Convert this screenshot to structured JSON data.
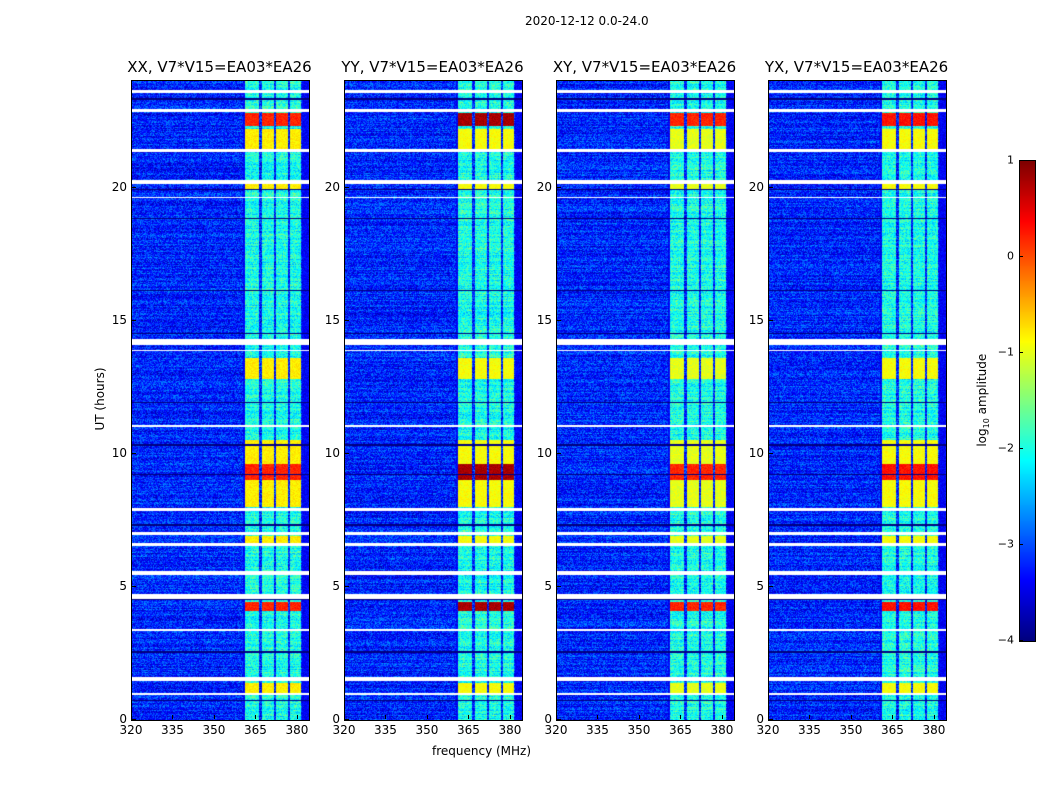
{
  "figure_title": "2020-12-12 0.0-24.0",
  "chart_data": {
    "type": "heatmap",
    "xlabel": "frequency (MHz)",
    "ylabel": "UT (hours)",
    "xlim": [
      320,
      384
    ],
    "ylim": [
      0,
      24
    ],
    "xticks": [
      "320",
      "335",
      "350",
      "365",
      "380"
    ],
    "xtick_values": [
      320,
      335,
      350,
      365,
      380
    ],
    "yticks": [
      "0",
      "5",
      "10",
      "15",
      "20"
    ],
    "ytick_values": [
      0,
      5,
      10,
      15,
      20
    ],
    "panels": [
      {
        "title": "XX, V7*V15=EA03*EA26",
        "hot_levels": [
          0.2,
          -0.8
        ]
      },
      {
        "title": "YY, V7*V15=EA03*EA26",
        "hot_levels": [
          0.8,
          -0.9
        ]
      },
      {
        "title": "XY, V7*V15=EA03*EA26",
        "hot_levels": [
          0.2,
          -1.0
        ]
      },
      {
        "title": "YX, V7*V15=EA03*EA26",
        "hot_levels": [
          0.3,
          -0.9
        ]
      }
    ],
    "colorbar": {
      "label": "log10 amplitude",
      "label_main": "log",
      "label_sub": "10",
      "label_rest": " amplitude",
      "range": [
        -4,
        1
      ],
      "ticks": [
        "1",
        "0",
        "−1",
        "−2",
        "−3",
        "−4"
      ],
      "tick_values": [
        1,
        0,
        -1,
        -2,
        -3,
        -4
      ],
      "colormap": "jet"
    },
    "background_level": -3.2,
    "subbands_mhz": [
      [
        361,
        366
      ],
      [
        367,
        371.5
      ],
      [
        372,
        376.5
      ],
      [
        377,
        381
      ]
    ],
    "subband_level": -2.0,
    "flagged_hours": [
      [
        23.55,
        23.65
      ],
      [
        22.85,
        22.95
      ],
      [
        21.35,
        21.45
      ],
      [
        20.15,
        20.3
      ],
      [
        19.6,
        19.65
      ],
      [
        14.1,
        14.3
      ],
      [
        13.85,
        13.9
      ],
      [
        11.0,
        11.08
      ],
      [
        7.85,
        7.95
      ],
      [
        6.95,
        7.05
      ],
      [
        6.55,
        6.65
      ],
      [
        5.45,
        5.6
      ],
      [
        4.55,
        4.75
      ],
      [
        3.35,
        3.42
      ],
      [
        1.45,
        1.6
      ],
      [
        0.95,
        1.0
      ]
    ],
    "dark_hours": [
      [
        23.3,
        23.35
      ],
      [
        19.9,
        19.95
      ],
      [
        18.8,
        18.85
      ],
      [
        16.1,
        16.15
      ],
      [
        14.5,
        14.55
      ],
      [
        11.9,
        11.95
      ],
      [
        10.3,
        10.35
      ],
      [
        9.2,
        9.25
      ],
      [
        7.3,
        7.35
      ],
      [
        4.5,
        4.55
      ],
      [
        2.5,
        2.6
      ],
      [
        0.7,
        0.75
      ]
    ],
    "bright_hours": [
      {
        "range": [
          22.3,
          22.8
        ],
        "hot": true
      },
      {
        "range": [
          21.45,
          22.2
        ],
        "hot": false
      },
      {
        "range": [
          19.95,
          20.15
        ],
        "hot": false
      },
      {
        "range": [
          12.8,
          13.6
        ],
        "hot": false
      },
      {
        "range": [
          9.0,
          9.6
        ],
        "hot": true
      },
      {
        "range": [
          8.0,
          10.5
        ],
        "hot": false
      },
      {
        "range": [
          6.65,
          6.9
        ],
        "hot": false
      },
      {
        "range": [
          4.1,
          4.45
        ],
        "hot": true
      },
      {
        "range": [
          1.0,
          1.4
        ],
        "hot": false
      }
    ]
  }
}
